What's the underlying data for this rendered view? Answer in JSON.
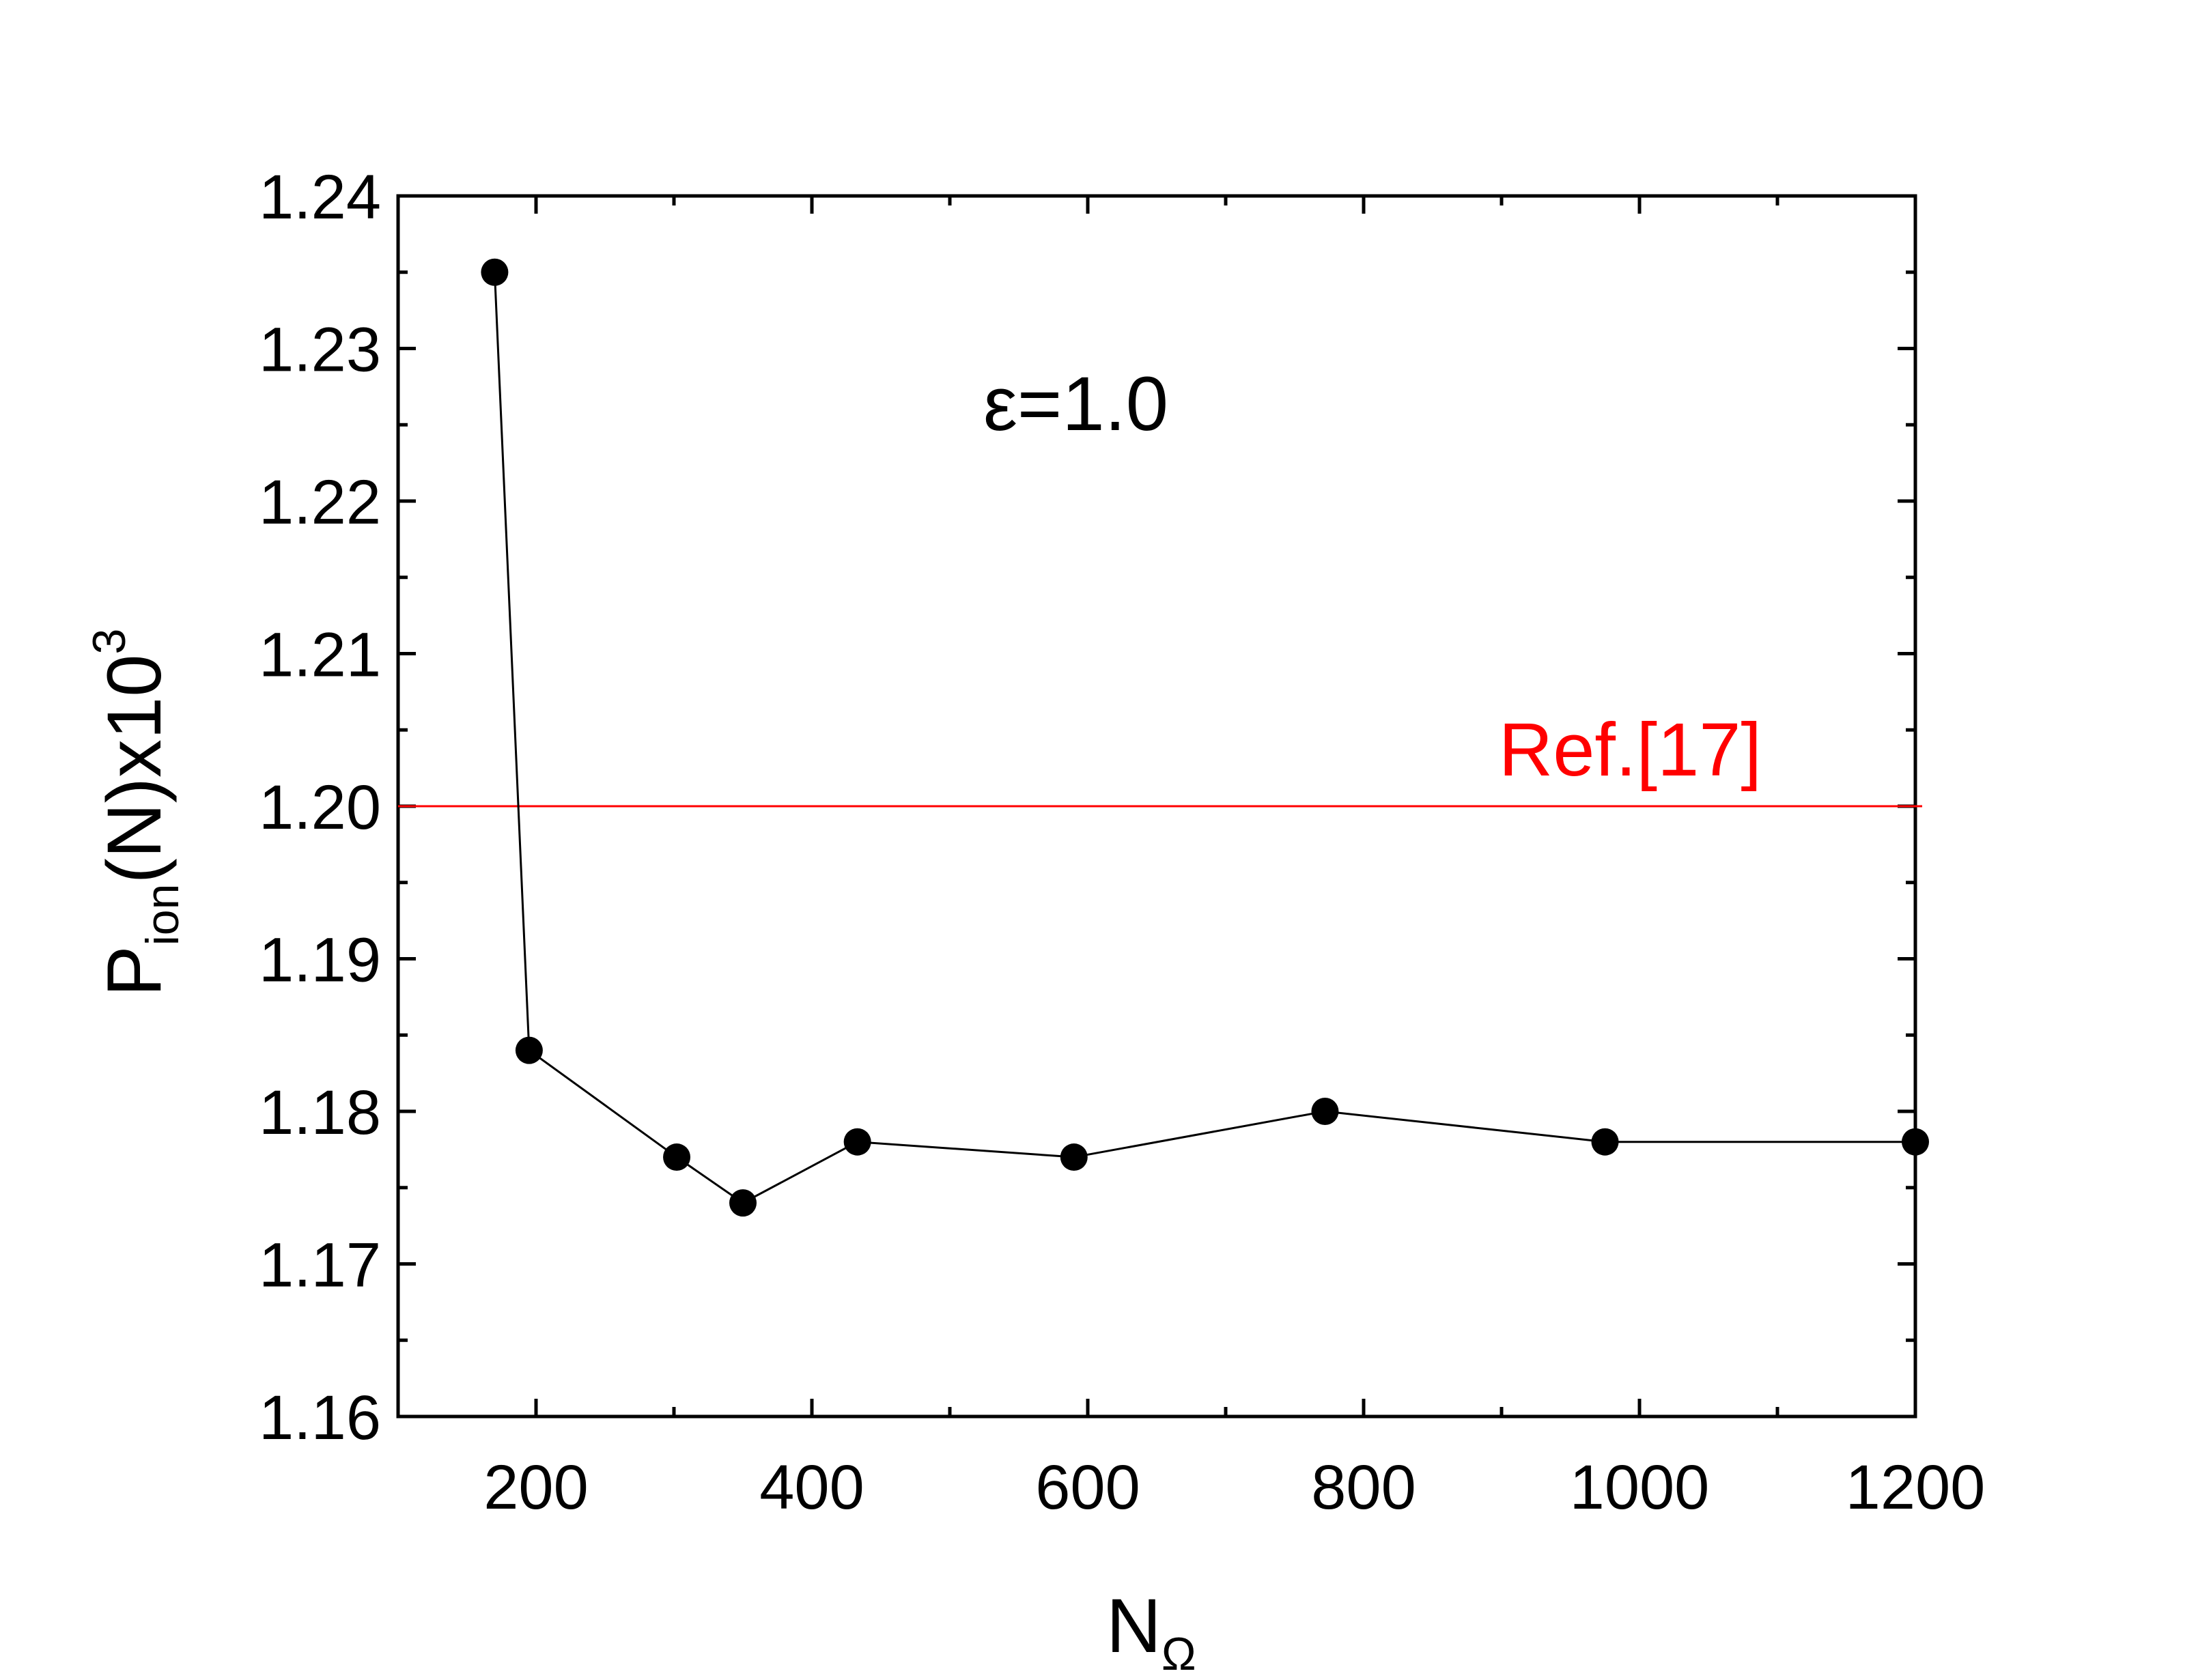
{
  "chart_data": {
    "type": "line",
    "x_axis": {
      "label_main": "N",
      "label_sub": "Ω",
      "range": [
        100,
        1200
      ],
      "ticks": [
        200,
        400,
        600,
        800,
        1000,
        1200
      ]
    },
    "y_axis": {
      "label_main": "P",
      "label_sub": "ion",
      "label_mid": "(N)x10",
      "label_sup": "3",
      "range": [
        1.16,
        1.24
      ],
      "ticks": [
        "1.16",
        "1.17",
        "1.18",
        "1.19",
        "1.20",
        "1.21",
        "1.22",
        "1.23",
        "1.24"
      ]
    },
    "series": [
      {
        "marker": "filled-circle",
        "color": "#000000",
        "points": [
          {
            "x": 170,
            "y": 1.235
          },
          {
            "x": 195,
            "y": 1.184
          },
          {
            "x": 302,
            "y": 1.177
          },
          {
            "x": 350,
            "y": 1.174
          },
          {
            "x": 433,
            "y": 1.178
          },
          {
            "x": 590,
            "y": 1.177
          },
          {
            "x": 772,
            "y": 1.18
          },
          {
            "x": 975,
            "y": 1.178
          },
          {
            "x": 1200,
            "y": 1.178
          }
        ]
      }
    ],
    "reference_line": {
      "y": 1.2,
      "label": "Ref.[17]",
      "color": "#ff0000"
    },
    "annotation": "ε=1.0",
    "grid": false,
    "legend": "none"
  }
}
